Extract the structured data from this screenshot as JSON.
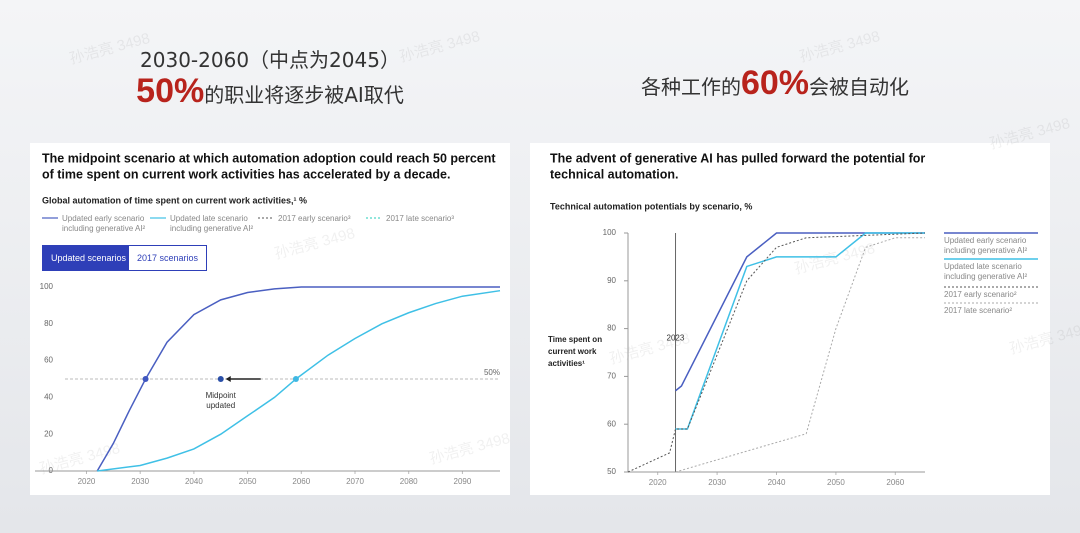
{
  "slide": {
    "left_heading": "2030-2060（中点为2045）",
    "left_highlight": "50%",
    "left_tail": "的职业将逐步被AI取代",
    "right_pre": "各种工作的",
    "right_highlight": "60%",
    "right_tail": "会被自动化",
    "watermark": "孙浩亮 3498"
  },
  "chart_data": [
    {
      "type": "line",
      "title": [
        "The midpoint scenario at which automation adoption could reach 50 percent",
        "of time spent on current work activities has accelerated by a decade."
      ],
      "subtitle": "Global automation of time spent on current work activities,¹ %",
      "buttons": [
        "Updated scenarios",
        "2017 scenarios"
      ],
      "xlim": [
        2016,
        2097
      ],
      "xticks": [
        2020,
        2030,
        2040,
        2050,
        2060,
        2070,
        2080,
        2090
      ],
      "ylim": [
        0,
        100
      ],
      "yticks": [
        0,
        20,
        40,
        60,
        80,
        100
      ],
      "reference_line": {
        "value": 50,
        "label": "50%"
      },
      "annotation": {
        "x": 2045,
        "y": 50,
        "label": "Midpoint updated"
      },
      "points": [
        {
          "x": 2031,
          "y": 50,
          "color": "#3f56c0"
        },
        {
          "x": 2045,
          "y": 50,
          "color": "#2a4fa8"
        },
        {
          "x": 2059,
          "y": 50,
          "color": "#3fb8e3"
        }
      ],
      "series": [
        {
          "name": "Updated early scenario including generative AI²",
          "color": "#4a5fc1",
          "style": "solid",
          "x": [
            2022,
            2025,
            2028,
            2031,
            2035,
            2040,
            2045,
            2050,
            2055,
            2060,
            2097
          ],
          "values": [
            0,
            15,
            33,
            50,
            70,
            85,
            93,
            97,
            99,
            100,
            100
          ]
        },
        {
          "name": "Updated late scenario including generative AI²",
          "color": "#3fc0e6",
          "style": "solid",
          "x": [
            2022,
            2030,
            2035,
            2040,
            2045,
            2050,
            2055,
            2059,
            2065,
            2070,
            2075,
            2080,
            2085,
            2090,
            2097
          ],
          "values": [
            0,
            3,
            7,
            12,
            20,
            30,
            40,
            50,
            63,
            72,
            80,
            86,
            91,
            95,
            98
          ]
        },
        {
          "name": "2017 early scenario³",
          "color": "#777777",
          "style": "dotted",
          "x": [
            2022
          ],
          "values": [
            null
          ]
        },
        {
          "name": "2017 late scenario³",
          "color": "#4fd6c8",
          "style": "dotted",
          "x": [
            2022
          ],
          "values": [
            null
          ]
        }
      ]
    },
    {
      "type": "line",
      "title": [
        "The advent of generative AI has pulled forward the potential for",
        "technical automation."
      ],
      "subtitle": "Technical automation potentials by scenario, %",
      "ylabel": "Time spent on current work activities¹",
      "xlim": [
        2015,
        2065
      ],
      "xticks": [
        2020,
        2030,
        2040,
        2050,
        2060
      ],
      "ylim": [
        50,
        100
      ],
      "yticks": [
        50,
        60,
        70,
        80,
        90,
        100
      ],
      "marker_line": {
        "x": 2023,
        "label": "2023"
      },
      "series": [
        {
          "name": "Updated early scenario including generative AI²",
          "color": "#4a5fc1",
          "style": "solid",
          "x": [
            2023,
            2024,
            2035,
            2040,
            2065
          ],
          "values": [
            67,
            68,
            95,
            100,
            100
          ]
        },
        {
          "name": "Updated late scenario including generative AI²",
          "color": "#3fc0e6",
          "style": "solid",
          "x": [
            2023,
            2025,
            2035,
            2040,
            2050,
            2055,
            2065
          ],
          "values": [
            59,
            59,
            93,
            95,
            95,
            100,
            100
          ]
        },
        {
          "name": "2017 early scenario²",
          "color": "#555555",
          "style": "dotted",
          "x": [
            2015,
            2022,
            2023,
            2025,
            2035,
            2040,
            2045,
            2065
          ],
          "values": [
            50,
            54,
            59,
            59,
            90,
            97,
            99,
            100
          ]
        },
        {
          "name": "2017 late scenario²",
          "color": "#aaaaaa",
          "style": "dotted",
          "x": [
            2023,
            2045,
            2050,
            2055,
            2060,
            2065
          ],
          "values": [
            50,
            58,
            80,
            97,
            99,
            99
          ]
        }
      ]
    }
  ]
}
